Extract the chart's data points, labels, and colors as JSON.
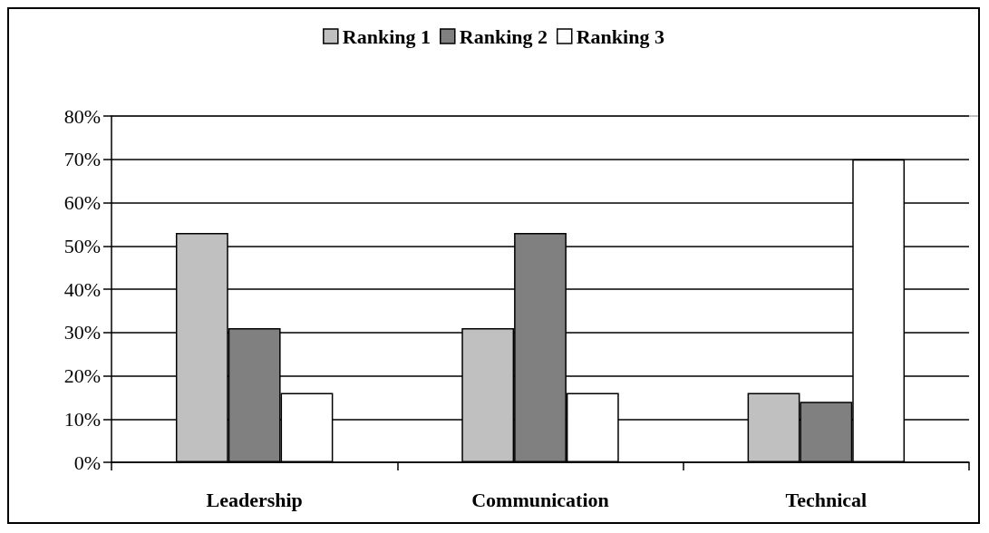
{
  "chart_data": {
    "type": "bar",
    "categories": [
      "Leadership",
      "Communication",
      "Technical"
    ],
    "series": [
      {
        "name": "Ranking 1",
        "color": "#c0c0c0",
        "values": [
          53,
          31,
          16
        ]
      },
      {
        "name": "Ranking 2",
        "color": "#808080",
        "values": [
          31,
          53,
          14
        ]
      },
      {
        "name": "Ranking 3",
        "color": "#ffffff",
        "values": [
          16,
          16,
          70
        ]
      }
    ],
    "ylim": [
      0,
      80
    ],
    "yticks": [
      {
        "value": 0,
        "label": "0%"
      },
      {
        "value": 10,
        "label": "10%"
      },
      {
        "value": 20,
        "label": "20%"
      },
      {
        "value": 30,
        "label": "30%"
      },
      {
        "value": 40,
        "label": "40%"
      },
      {
        "value": 50,
        "label": "50%"
      },
      {
        "value": 60,
        "label": "60%"
      },
      {
        "value": 70,
        "label": "70%"
      },
      {
        "value": 80,
        "label": "80%"
      }
    ],
    "grid": "y",
    "legend": "top"
  }
}
